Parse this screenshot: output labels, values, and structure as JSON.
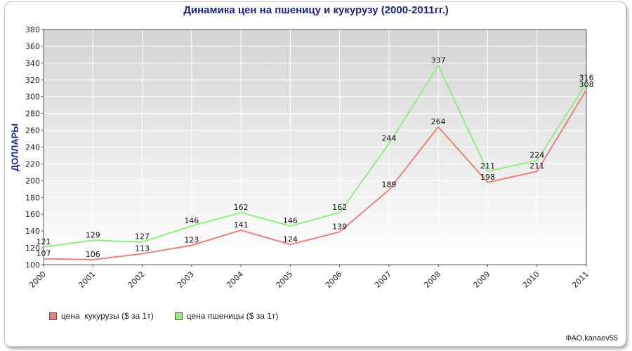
{
  "chart_data": {
    "type": "line",
    "title": "Динамика цен на пшеницу и кукурузу (2000-2011гг.)",
    "xlabel": "",
    "ylabel": "ДОЛЛАРЫ",
    "categories": [
      "2000",
      "2001",
      "2002",
      "2003",
      "2004",
      "2005",
      "2006",
      "2007",
      "2008",
      "2009",
      "2010",
      "2011"
    ],
    "ylim": [
      100,
      380
    ],
    "yticks": [
      100,
      120,
      140,
      160,
      180,
      200,
      220,
      240,
      260,
      280,
      300,
      320,
      340,
      360,
      380
    ],
    "grid": true,
    "legend_position": "bottom-left",
    "series": [
      {
        "name": "цена  кукурузы ($ за 1т)",
        "color": "#e8827a",
        "values": [
          107,
          106,
          113,
          123,
          141,
          124,
          139,
          189,
          264,
          198,
          211,
          308
        ]
      },
      {
        "name": "цена пшеницы ($ за 1т)",
        "color": "#90ee80",
        "values": [
          121,
          129,
          127,
          146,
          162,
          146,
          162,
          244,
          337,
          211,
          224,
          316
        ]
      }
    ]
  },
  "source": "ФАО,kanaev55"
}
